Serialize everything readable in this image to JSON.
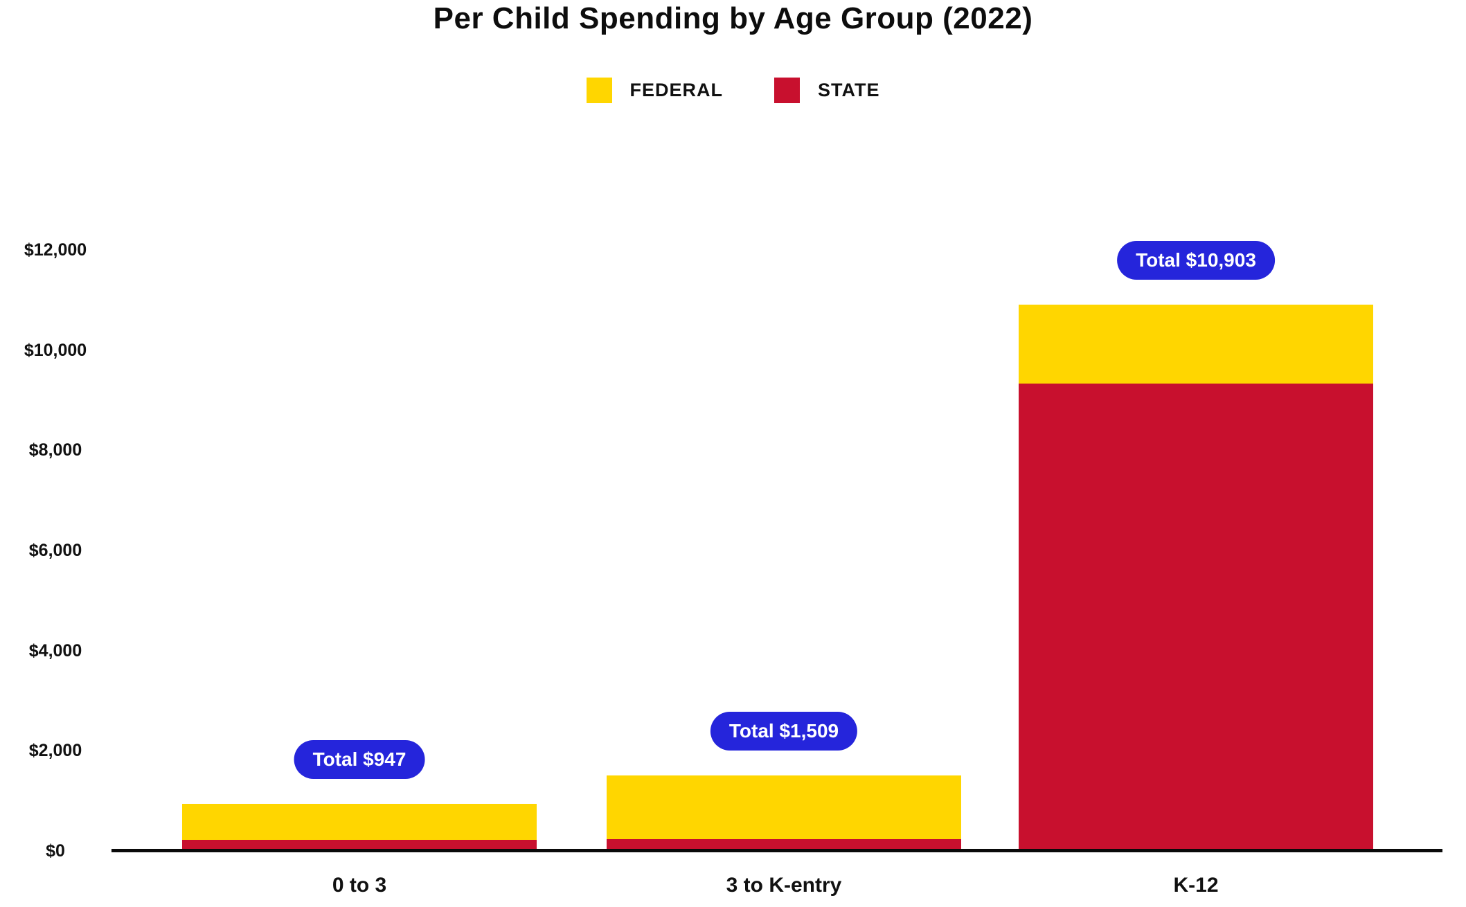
{
  "chart": {
    "legend": [
      {
        "label": "FEDERAL",
        "color": "#FFD600"
      },
      {
        "label": "STATE",
        "color": "#C8102E"
      }
    ]
  },
  "chart_data": {
    "type": "bar",
    "stacked": true,
    "title": "Per Child Spending by Age Group (2022)",
    "categories": [
      "0 to 3",
      "3 to K-entry",
      "K-12"
    ],
    "series": [
      {
        "name": "STATE",
        "color": "#C8102E",
        "values": [
          222,
          239,
          9328
        ]
      },
      {
        "name": "FEDERAL",
        "color": "#FFD600",
        "values": [
          725,
          1270,
          1575
        ]
      }
    ],
    "totals": [
      947,
      1509,
      10903
    ],
    "annotations": [
      "Total $947",
      "Total $1,509",
      "Total $10,903"
    ],
    "annotation_color": "#2525DB",
    "xlabel": "",
    "ylabel": "",
    "ylim": [
      0,
      12000
    ],
    "yticks": [
      {
        "value": 0,
        "label": "$0"
      },
      {
        "value": 2000,
        "label": "$2,000"
      },
      {
        "value": 4000,
        "label": "$4,000"
      },
      {
        "value": 6000,
        "label": "$6,000"
      },
      {
        "value": 8000,
        "label": "$8,000"
      },
      {
        "value": 10000,
        "label": "$10,000"
      },
      {
        "value": 12000,
        "label": "$12,000"
      }
    ],
    "grid": false,
    "legend_position": "top"
  }
}
